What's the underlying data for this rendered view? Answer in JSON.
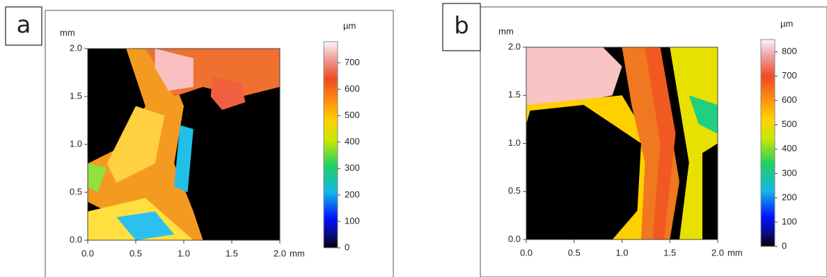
{
  "panels": [
    {
      "label": "a",
      "x_unit": "mm",
      "y_unit": "mm",
      "xlim": [
        0,
        2
      ],
      "xticks": [
        {
          "value": 0,
          "label": "0.0"
        },
        {
          "value": 0.5,
          "label": "0.5"
        },
        {
          "value": 1,
          "label": "1.0"
        },
        {
          "value": 1.5,
          "label": "1.5"
        },
        {
          "value": 2,
          "label": "2.0"
        }
      ],
      "ylim": [
        0,
        2
      ],
      "yticks": [
        {
          "value": 0,
          "label": "0.0"
        },
        {
          "value": 0.5,
          "label": "0.5"
        },
        {
          "value": 1,
          "label": "1.0"
        },
        {
          "value": 1.5,
          "label": "1.5"
        },
        {
          "value": 2,
          "label": "2.0"
        }
      ],
      "colorbar": {
        "unit": "µm",
        "lim": [
          0,
          780
        ],
        "ticks": [
          0,
          100,
          200,
          300,
          400,
          500,
          600,
          700
        ]
      }
    },
    {
      "label": "b",
      "x_unit": "mm",
      "y_unit": "mm",
      "xlim": [
        0,
        2
      ],
      "xticks": [
        {
          "value": 0,
          "label": "0.0"
        },
        {
          "value": 0.5,
          "label": "0.5"
        },
        {
          "value": 1,
          "label": "1.0"
        },
        {
          "value": 1.5,
          "label": "1.5"
        },
        {
          "value": 2,
          "label": "2.0"
        }
      ],
      "ylim": [
        0,
        2
      ],
      "yticks": [
        {
          "value": 0,
          "label": "0.0"
        },
        {
          "value": 0.5,
          "label": "0.5"
        },
        {
          "value": 1,
          "label": "1.0"
        },
        {
          "value": 1.5,
          "label": "1.5"
        },
        {
          "value": 2,
          "label": "2.0"
        }
      ],
      "colorbar": {
        "unit": "µm",
        "lim": [
          0,
          850
        ],
        "ticks": [
          0,
          100,
          200,
          300,
          400,
          500,
          600,
          700,
          800
        ]
      }
    }
  ]
}
